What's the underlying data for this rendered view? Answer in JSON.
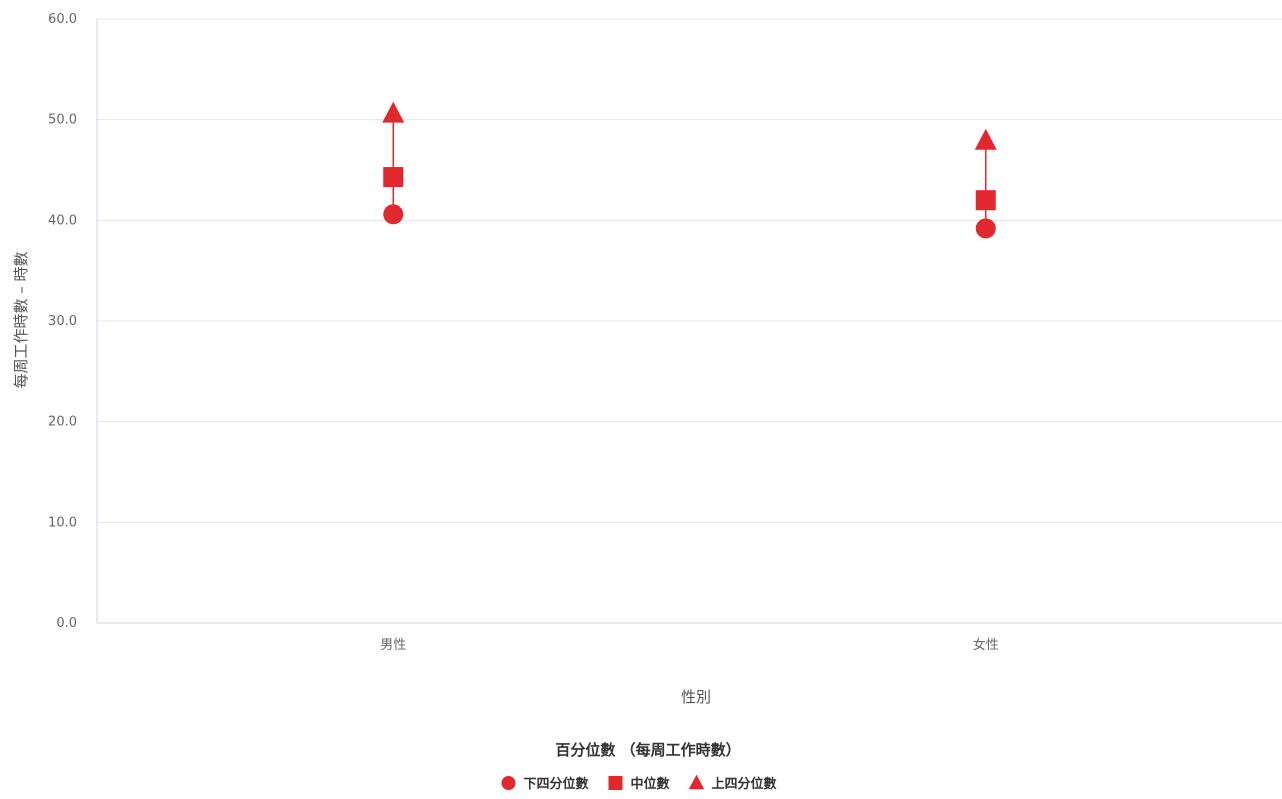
{
  "chart_data": {
    "type": "scatter",
    "categories": [
      "男性",
      "女性"
    ],
    "series": [
      {
        "name": "下四分位數",
        "values": [
          40.6,
          39.2
        ],
        "marker": "circle"
      },
      {
        "name": "中位數",
        "values": [
          44.3,
          42.0
        ],
        "marker": "square"
      },
      {
        "name": "上四分位數",
        "values": [
          50.6,
          47.9
        ],
        "marker": "triangle"
      }
    ],
    "ylim": [
      0,
      60
    ],
    "yticks": [
      "0.0",
      "10.0",
      "20.0",
      "30.0",
      "40.0",
      "50.0",
      "60.0"
    ],
    "xlabel": "性別",
    "ylabel": "每周工作時數 – 時數",
    "legend_title": "百分位數 （每周工作時數）",
    "legend_position": "bottom-center",
    "grid": true,
    "range_lines": true,
    "color": "#e0282e",
    "gridline_color": "#e6e6e6",
    "axis_color": "#ccd6eb"
  }
}
